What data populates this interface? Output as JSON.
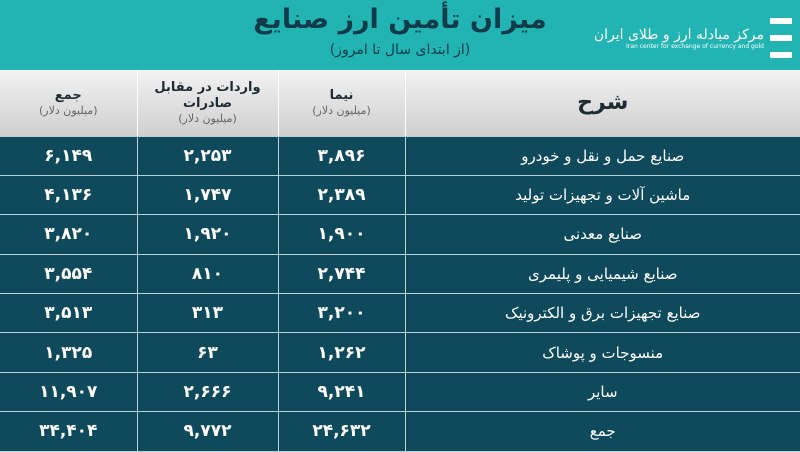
{
  "header": {
    "title": "میزان تأمین ارز صنایع",
    "subtitle": "(از ابتدای سال تا امروز)"
  },
  "logo": {
    "text_fa": "مرکز مبادله ارز و طلای ایران",
    "text_en": "Iran center for exchange of currency and gold"
  },
  "colors": {
    "header_bg": "#22b4b3",
    "table_bg": "#0e4a5b"
  },
  "columns": [
    {
      "label": "شرح",
      "unit": ""
    },
    {
      "label": "نیما",
      "unit": "(میلیون دلار)"
    },
    {
      "label": "واردات در مقابل صادرات",
      "unit": "(میلیون دلار)"
    },
    {
      "label": "جمع",
      "unit": "(میلیون دلار)"
    }
  ],
  "rows": [
    [
      "صنایع حمل و نقل و خودرو",
      "۳,۸۹۶",
      "۲,۲۵۳",
      "۶,۱۴۹"
    ],
    [
      "ماشین آلات و تجهیزات تولید",
      "۲,۳۸۹",
      "۱,۷۴۷",
      "۴,۱۳۶"
    ],
    [
      "صنایع معدنی",
      "۱,۹۰۰",
      "۱,۹۲۰",
      "۳,۸۲۰"
    ],
    [
      "صنایع شیمیایی و پلیمری",
      "۲,۷۴۴",
      "۸۱۰",
      "۳,۵۵۴"
    ],
    [
      "صنایع تجهیزات برق و الکترونیک",
      "۳,۲۰۰",
      "۳۱۳",
      "۳,۵۱۳"
    ],
    [
      "منسوجات و پوشاک",
      "۱,۲۶۲",
      "۶۳",
      "۱,۳۲۵"
    ],
    [
      "سایر",
      "۹,۲۴۱",
      "۲,۶۶۶",
      "۱۱,۹۰۷"
    ],
    [
      "جمع",
      "۲۴,۶۳۲",
      "۹,۷۷۲",
      "۳۴,۴۰۴"
    ]
  ]
}
